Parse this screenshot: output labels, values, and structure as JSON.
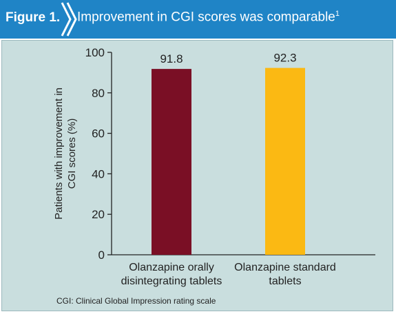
{
  "header": {
    "figure_label": "Figure 1.",
    "title": "Improvement in CGI scores was comparable",
    "title_superscript": "1",
    "bar_color": "#1f84c6"
  },
  "chart_data": {
    "type": "bar",
    "ylabel_lines": [
      "Patients with improvement in",
      "CGI scores (%)"
    ],
    "ylim": [
      0,
      100
    ],
    "yticks": [
      0,
      20,
      40,
      60,
      80,
      100
    ],
    "categories": [
      [
        "Olanzapine orally",
        "disintegrating tablets"
      ],
      [
        "Olanzapine standard",
        "tablets"
      ]
    ],
    "values": [
      91.8,
      92.3
    ],
    "value_labels": [
      "91.8",
      "92.3"
    ],
    "colors": [
      "#7a0f25",
      "#fbb913"
    ],
    "grid": false
  },
  "footnote": "CGI: Clinical Global Impression rating scale"
}
